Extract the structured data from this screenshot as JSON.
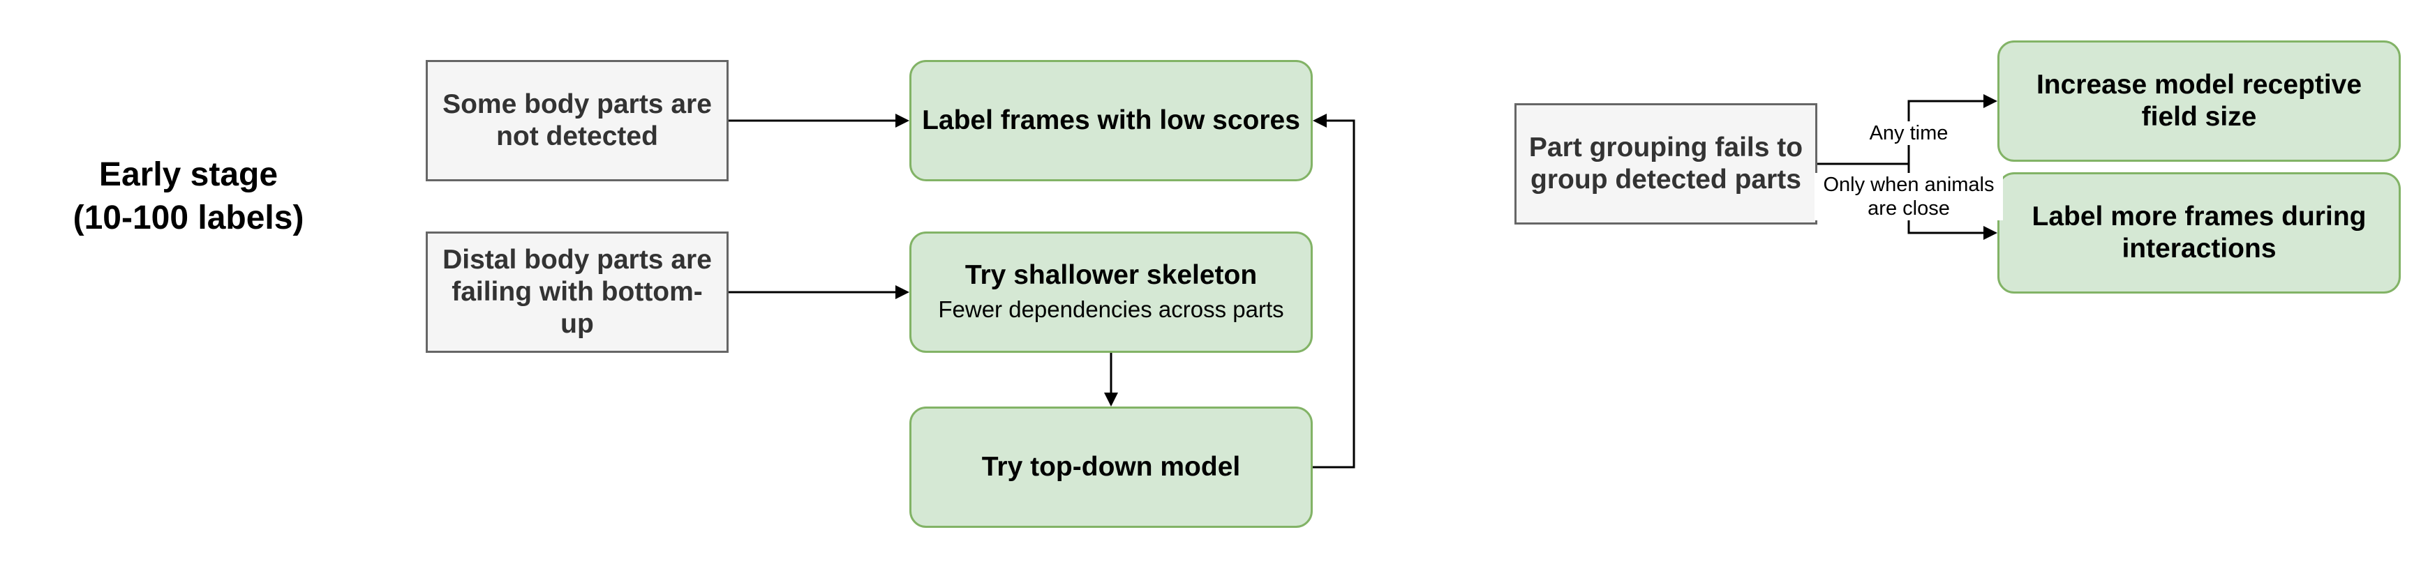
{
  "stage": {
    "line1": "Early stage",
    "line2": "(10-100 labels)"
  },
  "problems": {
    "undetected": "Some body parts are not detected",
    "distal": "Distal body parts are failing with bottom-up",
    "grouping": "Part grouping fails to group detected parts"
  },
  "solutions": {
    "label_low_scores": "Label frames with low scores",
    "shallow_skeleton": {
      "title": "Try shallower skeleton",
      "subtitle": "Fewer dependencies across parts"
    },
    "top_down": "Try top-down model",
    "receptive_field": "Increase model receptive field size",
    "interaction_frames": "Label more frames during interactions"
  },
  "edge_labels": {
    "any_time": "Any time",
    "when_close": "Only when animals are close"
  },
  "colors": {
    "problem_fill": "#f5f5f5",
    "problem_stroke": "#666666",
    "solution_fill": "#d5e8d4",
    "solution_stroke": "#82b366",
    "edge": "#000000"
  }
}
